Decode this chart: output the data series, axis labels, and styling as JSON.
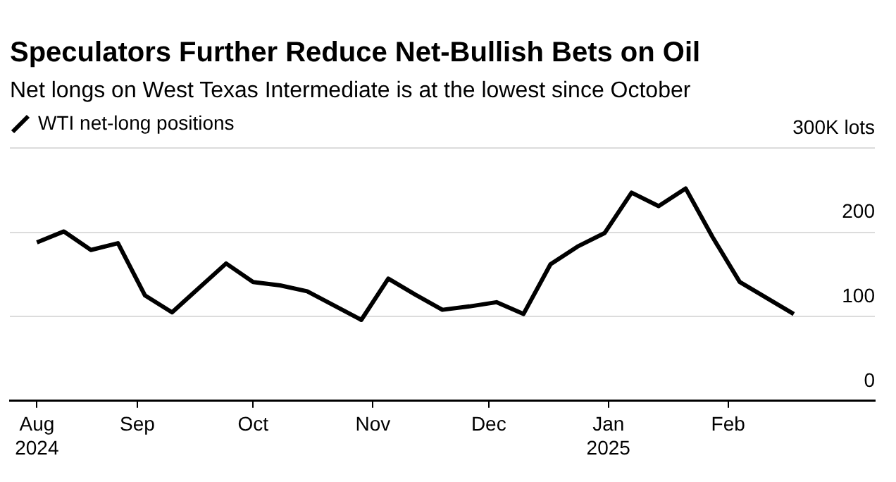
{
  "chart_data": {
    "type": "line",
    "title": "Speculators Further Reduce Net-Bullish Bets on Oil",
    "subtitle": "Net longs on West Texas Intermediate is at the lowest since October",
    "x": [
      "2024-08-06",
      "2024-08-13",
      "2024-08-20",
      "2024-08-27",
      "2024-09-03",
      "2024-09-10",
      "2024-09-17",
      "2024-09-24",
      "2024-10-01",
      "2024-10-08",
      "2024-10-15",
      "2024-10-22",
      "2024-10-29",
      "2024-11-05",
      "2024-11-12",
      "2024-11-19",
      "2024-11-26",
      "2024-12-03",
      "2024-12-10",
      "2024-12-17",
      "2024-12-24",
      "2024-12-31",
      "2025-01-07",
      "2025-01-14",
      "2025-01-21",
      "2025-01-28",
      "2025-02-04",
      "2025-02-11",
      "2025-02-18"
    ],
    "series": [
      {
        "name": "WTI net-long positions",
        "color": "#000000",
        "values": [
          188,
          201,
          179,
          187,
          125,
          105,
          134,
          163,
          141,
          137,
          130,
          113,
          96,
          145,
          126,
          108,
          112,
          117,
          103,
          162,
          183,
          199,
          247,
          231,
          252,
          194,
          141,
          122,
          103
        ]
      }
    ],
    "xlim": [
      "2024-07-30",
      "2025-03-11"
    ],
    "xticks": [
      {
        "value": "2024-08-06",
        "label": "Aug\n2024"
      },
      {
        "value": "2024-09-01",
        "label": "Sep"
      },
      {
        "value": "2024-10-01",
        "label": "Oct"
      },
      {
        "value": "2024-11-01",
        "label": "Nov"
      },
      {
        "value": "2024-12-01",
        "label": "Dec"
      },
      {
        "value": "2025-01-01",
        "label": "Jan\n2025"
      },
      {
        "value": "2025-02-01",
        "label": "Feb"
      }
    ],
    "ylim": [
      0,
      300
    ],
    "yticks": [
      0,
      100,
      200,
      {
        "value": 300,
        "label": "300K lots"
      }
    ],
    "grid": "y",
    "legend": "top left"
  }
}
